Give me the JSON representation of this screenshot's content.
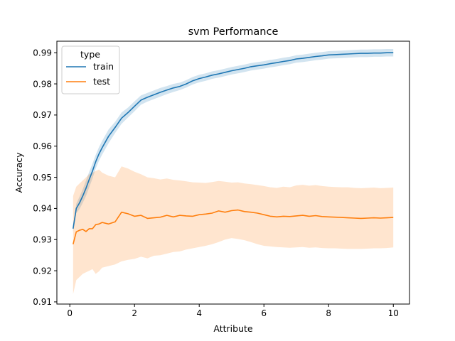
{
  "chart_data": {
    "type": "line",
    "title": "svm Performance",
    "xlabel": "Attribute",
    "ylabel": "Accuracy",
    "xlim": [
      -0.4,
      10.5
    ],
    "ylim": [
      0.9093,
      0.9937
    ],
    "xticks": [
      0,
      2,
      4,
      6,
      8,
      10
    ],
    "xtick_labels": [
      "0",
      "2",
      "4",
      "6",
      "8",
      "10"
    ],
    "yticks": [
      0.91,
      0.92,
      0.93,
      0.94,
      0.95,
      0.96,
      0.97,
      0.98,
      0.99
    ],
    "ytick_labels": [
      "0.91",
      "0.92",
      "0.93",
      "0.94",
      "0.95",
      "0.96",
      "0.97",
      "0.98",
      "0.99"
    ],
    "grid": false,
    "legend": {
      "title": "type",
      "placement": "top-left"
    },
    "series": [
      {
        "name": "train",
        "color": "#1f77b4",
        "band_color": "#1f77b4",
        "x": [
          0.1,
          0.2,
          0.3,
          0.4,
          0.5,
          0.6,
          0.7,
          0.8,
          0.9,
          1.0,
          1.2,
          1.4,
          1.6,
          1.8,
          2.0,
          2.2,
          2.4,
          2.6,
          2.8,
          3.0,
          3.2,
          3.4,
          3.6,
          3.8,
          4.0,
          4.2,
          4.4,
          4.6,
          4.8,
          5.0,
          5.2,
          5.4,
          5.6,
          5.8,
          6.0,
          6.2,
          6.4,
          6.6,
          6.8,
          7.0,
          7.2,
          7.4,
          7.6,
          7.8,
          8.0,
          8.2,
          8.4,
          8.6,
          8.8,
          9.0,
          9.2,
          9.4,
          9.6,
          9.8,
          10.0
        ],
        "y": [
          0.9335,
          0.94,
          0.9418,
          0.944,
          0.9465,
          0.9493,
          0.952,
          0.955,
          0.9575,
          0.9595,
          0.9632,
          0.966,
          0.969,
          0.9708,
          0.9728,
          0.9748,
          0.9757,
          0.9765,
          0.9773,
          0.978,
          0.9787,
          0.9792,
          0.98,
          0.981,
          0.9817,
          0.9822,
          0.9828,
          0.9832,
          0.9837,
          0.9842,
          0.9846,
          0.985,
          0.9855,
          0.9858,
          0.9861,
          0.9865,
          0.9868,
          0.9872,
          0.9875,
          0.988,
          0.9882,
          0.9885,
          0.9888,
          0.989,
          0.9893,
          0.9894,
          0.9895,
          0.9896,
          0.9897,
          0.9898,
          0.9898,
          0.9899,
          0.9899,
          0.99,
          0.99
        ],
        "y_lower": [
          0.9325,
          0.9385,
          0.9398,
          0.9418,
          0.944,
          0.9468,
          0.9496,
          0.9528,
          0.9553,
          0.9573,
          0.961,
          0.9642,
          0.9672,
          0.9692,
          0.9712,
          0.9733,
          0.9743,
          0.9751,
          0.9759,
          0.9767,
          0.9774,
          0.978,
          0.9788,
          0.9798,
          0.9805,
          0.981,
          0.9816,
          0.982,
          0.9825,
          0.983,
          0.9834,
          0.9838,
          0.9843,
          0.9846,
          0.9849,
          0.9853,
          0.9856,
          0.986,
          0.9863,
          0.9868,
          0.987,
          0.9873,
          0.9876,
          0.9878,
          0.9881,
          0.9882,
          0.9883,
          0.9884,
          0.9885,
          0.9886,
          0.9886,
          0.9887,
          0.9887,
          0.9888,
          0.9888
        ],
        "y_upper": [
          0.9345,
          0.9415,
          0.9438,
          0.9462,
          0.949,
          0.9518,
          0.9544,
          0.9572,
          0.9597,
          0.9617,
          0.9654,
          0.9678,
          0.9708,
          0.9724,
          0.9744,
          0.9763,
          0.9771,
          0.9779,
          0.9787,
          0.9793,
          0.98,
          0.9804,
          0.9812,
          0.9822,
          0.9829,
          0.9834,
          0.984,
          0.9844,
          0.9849,
          0.9854,
          0.9858,
          0.9862,
          0.9867,
          0.987,
          0.9873,
          0.9877,
          0.988,
          0.9884,
          0.9887,
          0.9892,
          0.9894,
          0.9897,
          0.99,
          0.9902,
          0.9905,
          0.9906,
          0.9907,
          0.9908,
          0.9909,
          0.991,
          0.991,
          0.9911,
          0.9911,
          0.9912,
          0.9912
        ]
      },
      {
        "name": "test",
        "color": "#ff7f0e",
        "band_color": "#ff7f0e",
        "x": [
          0.1,
          0.2,
          0.3,
          0.4,
          0.5,
          0.6,
          0.7,
          0.8,
          0.9,
          1.0,
          1.2,
          1.4,
          1.6,
          1.8,
          2.0,
          2.2,
          2.4,
          2.6,
          2.8,
          3.0,
          3.2,
          3.4,
          3.6,
          3.8,
          4.0,
          4.2,
          4.4,
          4.6,
          4.8,
          5.0,
          5.2,
          5.4,
          5.6,
          5.8,
          6.0,
          6.2,
          6.4,
          6.6,
          6.8,
          7.0,
          7.2,
          7.4,
          7.6,
          7.8,
          8.0,
          8.2,
          8.4,
          8.6,
          8.8,
          9.0,
          9.2,
          9.4,
          9.6,
          9.8,
          10.0
        ],
        "y": [
          0.9285,
          0.9325,
          0.933,
          0.9333,
          0.9326,
          0.9335,
          0.9335,
          0.9348,
          0.935,
          0.9355,
          0.935,
          0.9357,
          0.9388,
          0.9383,
          0.9375,
          0.9378,
          0.9368,
          0.937,
          0.9372,
          0.9378,
          0.9373,
          0.9378,
          0.9376,
          0.9375,
          0.938,
          0.9382,
          0.9385,
          0.9392,
          0.9388,
          0.9393,
          0.9395,
          0.939,
          0.9388,
          0.9385,
          0.938,
          0.9375,
          0.9373,
          0.9375,
          0.9374,
          0.9376,
          0.9378,
          0.9375,
          0.9377,
          0.9374,
          0.9373,
          0.9372,
          0.9371,
          0.937,
          0.9369,
          0.9368,
          0.9369,
          0.937,
          0.9369,
          0.937,
          0.9371
        ],
        "y_lower": [
          0.9125,
          0.917,
          0.918,
          0.919,
          0.9195,
          0.92,
          0.9205,
          0.919,
          0.9198,
          0.921,
          0.9215,
          0.922,
          0.923,
          0.9235,
          0.9238,
          0.9245,
          0.924,
          0.9248,
          0.925,
          0.9255,
          0.926,
          0.9262,
          0.9268,
          0.9272,
          0.9276,
          0.928,
          0.9285,
          0.9292,
          0.93,
          0.9305,
          0.9302,
          0.9298,
          0.9292,
          0.9285,
          0.928,
          0.9278,
          0.9276,
          0.9275,
          0.9274,
          0.9275,
          0.9276,
          0.9274,
          0.9275,
          0.9273,
          0.9272,
          0.9272,
          0.9271,
          0.927,
          0.927,
          0.927,
          0.9271,
          0.9272,
          0.9272,
          0.9273,
          0.9275
        ],
        "y_upper": [
          0.944,
          0.947,
          0.948,
          0.949,
          0.95,
          0.951,
          0.9515,
          0.952,
          0.9525,
          0.9515,
          0.9505,
          0.95,
          0.9535,
          0.9528,
          0.9518,
          0.951,
          0.95,
          0.9497,
          0.9493,
          0.9496,
          0.9492,
          0.949,
          0.9487,
          0.9484,
          0.9483,
          0.9482,
          0.9485,
          0.9488,
          0.9486,
          0.9483,
          0.9484,
          0.948,
          0.9478,
          0.9475,
          0.9472,
          0.9468,
          0.9466,
          0.947,
          0.9468,
          0.9474,
          0.9476,
          0.9473,
          0.9475,
          0.9472,
          0.947,
          0.9469,
          0.9468,
          0.9468,
          0.9466,
          0.9465,
          0.9466,
          0.9467,
          0.9465,
          0.9466,
          0.9467
        ]
      }
    ]
  }
}
